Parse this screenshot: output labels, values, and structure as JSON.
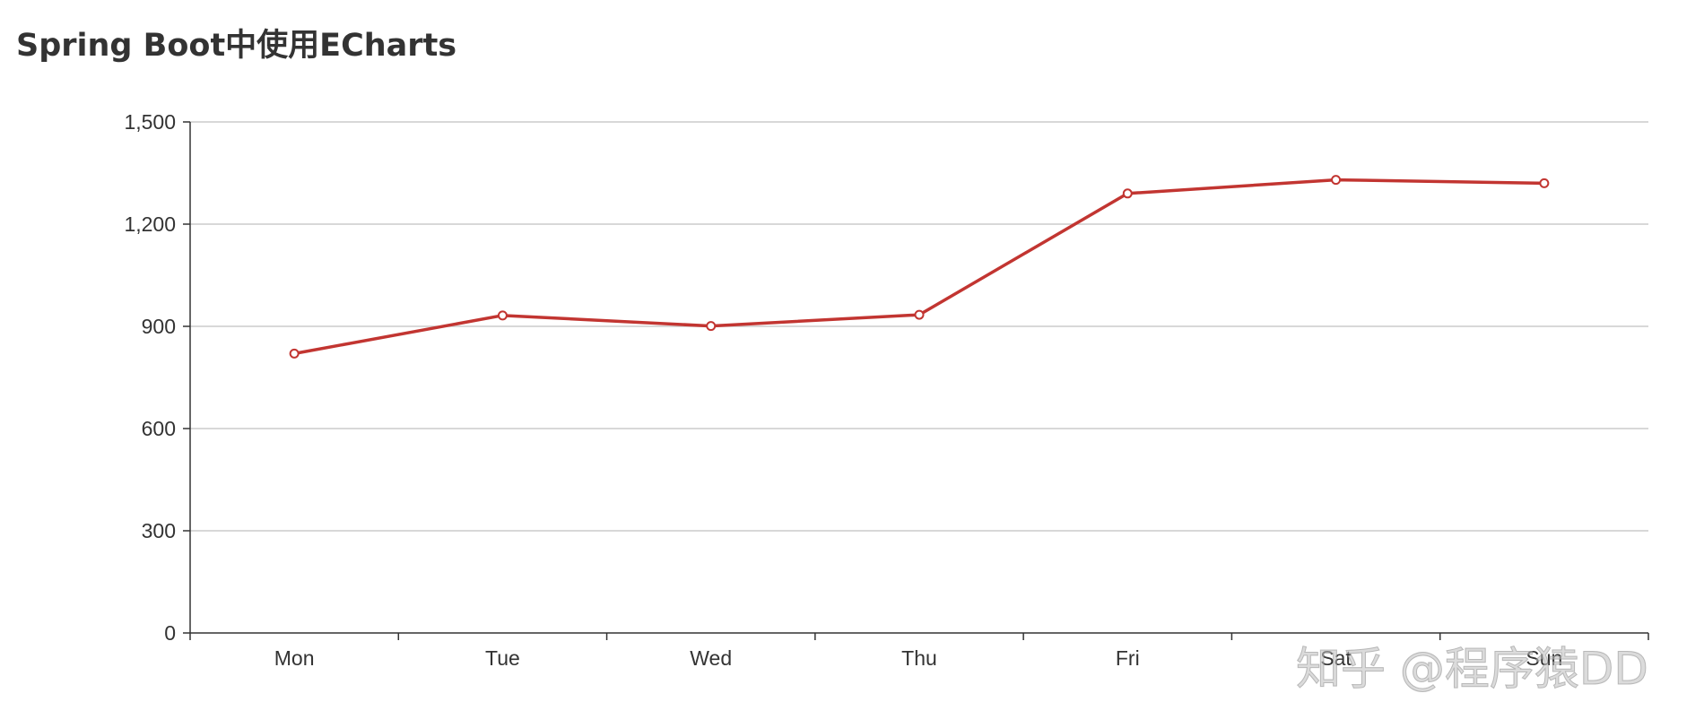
{
  "title": "Spring Boot中使用ECharts",
  "watermark": "知乎 @程序猿DD",
  "colors": {
    "series": "#c23531",
    "title": "#333333",
    "axis": "#333333",
    "grid": "#cccccc",
    "background": "#ffffff"
  },
  "chart_data": {
    "type": "line",
    "categories": [
      "Mon",
      "Tue",
      "Wed",
      "Thu",
      "Fri",
      "Sat",
      "Sun"
    ],
    "series": [
      {
        "values": [
          820,
          932,
          901,
          934,
          1290,
          1330,
          1320
        ]
      }
    ],
    "yticks": [
      "0",
      "300",
      "600",
      "900",
      "1,200",
      "1,500"
    ],
    "ylim": [
      0,
      1500
    ],
    "grid": true,
    "legend": "none"
  }
}
